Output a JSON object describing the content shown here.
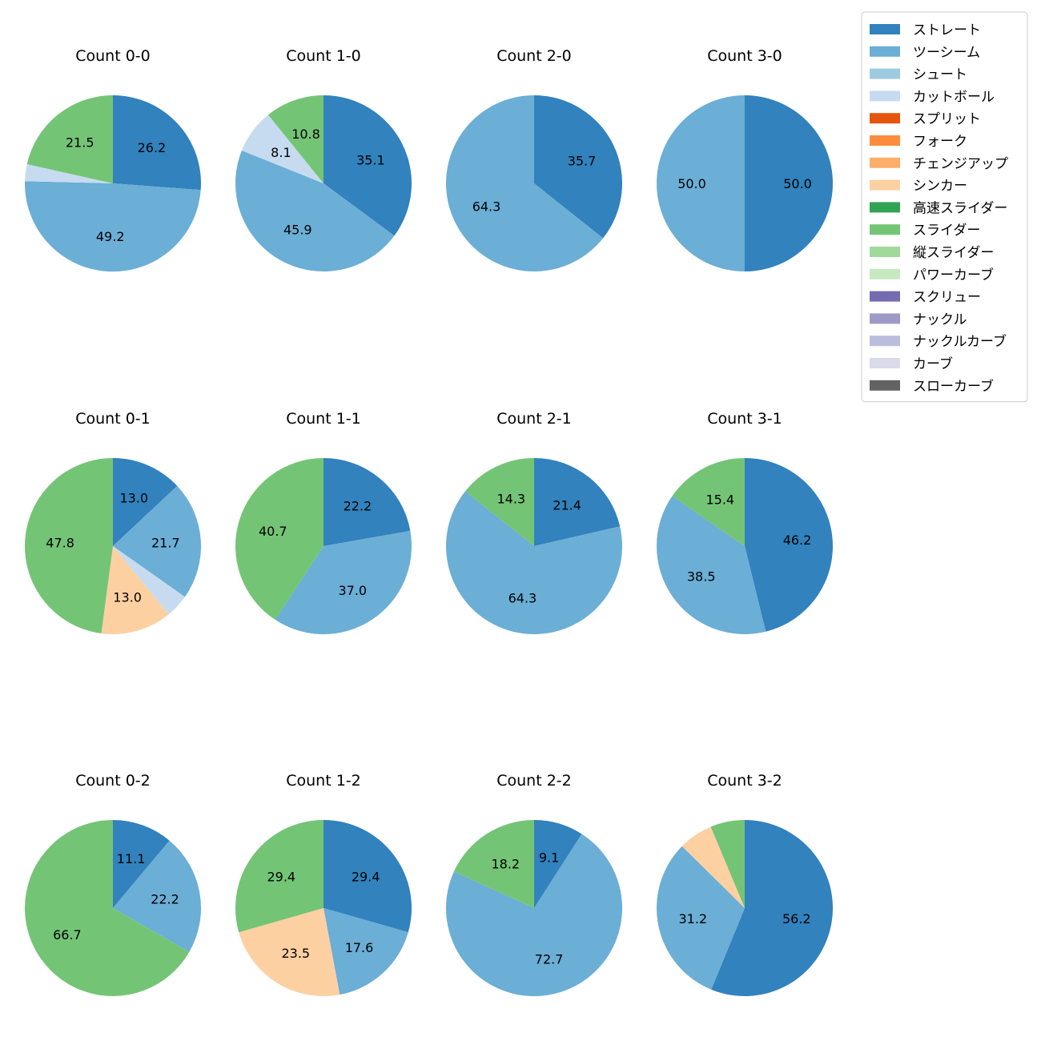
{
  "chart_data": {
    "type": "pie",
    "legend": {
      "position": "top-right",
      "entries": [
        {
          "name": "ストレート",
          "color": "#3182bd"
        },
        {
          "name": "ツーシーム",
          "color": "#6baed6"
        },
        {
          "name": "シュート",
          "color": "#9ecae1"
        },
        {
          "name": "カットボール",
          "color": "#c6dbef"
        },
        {
          "name": "スプリット",
          "color": "#e6550d"
        },
        {
          "name": "フォーク",
          "color": "#fd8d3c"
        },
        {
          "name": "チェンジアップ",
          "color": "#fdae6b"
        },
        {
          "name": "シンカー",
          "color": "#fdd0a2"
        },
        {
          "name": "高速スライダー",
          "color": "#31a354"
        },
        {
          "name": "スライダー",
          "color": "#74c476"
        },
        {
          "name": "縦スライダー",
          "color": "#a1d99b"
        },
        {
          "name": "パワーカーブ",
          "color": "#c7e9c0"
        },
        {
          "name": "スクリュー",
          "color": "#756bb1"
        },
        {
          "name": "ナックル",
          "color": "#9e9ac8"
        },
        {
          "name": "ナックルカーブ",
          "color": "#bcbddc"
        },
        {
          "name": "カーブ",
          "color": "#dadaeb"
        },
        {
          "name": "スローカーブ",
          "color": "#636363"
        }
      ]
    },
    "pies": [
      {
        "title": "Count 0-0",
        "slices": [
          {
            "pitch": "ストレート",
            "value": 26.2,
            "label": "26.2"
          },
          {
            "pitch": "ツーシーム",
            "value": 49.2,
            "label": "49.2"
          },
          {
            "pitch": "カットボール",
            "value": 3.1,
            "label": ""
          },
          {
            "pitch": "スライダー",
            "value": 21.5,
            "label": "21.5"
          }
        ]
      },
      {
        "title": "Count 1-0",
        "slices": [
          {
            "pitch": "ストレート",
            "value": 35.1,
            "label": "35.1"
          },
          {
            "pitch": "ツーシーム",
            "value": 45.9,
            "label": "45.9"
          },
          {
            "pitch": "カットボール",
            "value": 8.1,
            "label": "8.1"
          },
          {
            "pitch": "スライダー",
            "value": 10.8,
            "label": "10.8"
          }
        ]
      },
      {
        "title": "Count 2-0",
        "slices": [
          {
            "pitch": "ストレート",
            "value": 35.7,
            "label": "35.7"
          },
          {
            "pitch": "ツーシーム",
            "value": 64.3,
            "label": "64.3"
          }
        ]
      },
      {
        "title": "Count 3-0",
        "slices": [
          {
            "pitch": "ストレート",
            "value": 50.0,
            "label": "50.0"
          },
          {
            "pitch": "ツーシーム",
            "value": 50.0,
            "label": "50.0"
          }
        ]
      },
      {
        "title": "Count 0-1",
        "slices": [
          {
            "pitch": "ストレート",
            "value": 13.0,
            "label": "13.0"
          },
          {
            "pitch": "ツーシーム",
            "value": 21.7,
            "label": "21.7"
          },
          {
            "pitch": "カットボール",
            "value": 4.3,
            "label": ""
          },
          {
            "pitch": "シンカー",
            "value": 13.0,
            "label": "13.0"
          },
          {
            "pitch": "スライダー",
            "value": 47.8,
            "label": "47.8"
          }
        ]
      },
      {
        "title": "Count 1-1",
        "slices": [
          {
            "pitch": "ストレート",
            "value": 22.2,
            "label": "22.2"
          },
          {
            "pitch": "ツーシーム",
            "value": 37.0,
            "label": "37.0"
          },
          {
            "pitch": "スライダー",
            "value": 40.7,
            "label": "40.7"
          }
        ]
      },
      {
        "title": "Count 2-1",
        "slices": [
          {
            "pitch": "ストレート",
            "value": 21.4,
            "label": "21.4"
          },
          {
            "pitch": "ツーシーム",
            "value": 64.3,
            "label": "64.3"
          },
          {
            "pitch": "スライダー",
            "value": 14.3,
            "label": "14.3"
          }
        ]
      },
      {
        "title": "Count 3-1",
        "slices": [
          {
            "pitch": "ストレート",
            "value": 46.2,
            "label": "46.2"
          },
          {
            "pitch": "ツーシーム",
            "value": 38.5,
            "label": "38.5"
          },
          {
            "pitch": "スライダー",
            "value": 15.4,
            "label": "15.4"
          }
        ]
      },
      {
        "title": "Count 0-2",
        "slices": [
          {
            "pitch": "ストレート",
            "value": 11.1,
            "label": "11.1"
          },
          {
            "pitch": "ツーシーム",
            "value": 22.2,
            "label": "22.2"
          },
          {
            "pitch": "スライダー",
            "value": 66.7,
            "label": "66.7"
          }
        ]
      },
      {
        "title": "Count 1-2",
        "slices": [
          {
            "pitch": "ストレート",
            "value": 29.4,
            "label": "29.4"
          },
          {
            "pitch": "ツーシーム",
            "value": 17.6,
            "label": "17.6"
          },
          {
            "pitch": "シンカー",
            "value": 23.5,
            "label": "23.5"
          },
          {
            "pitch": "スライダー",
            "value": 29.4,
            "label": "29.4"
          }
        ]
      },
      {
        "title": "Count 2-2",
        "slices": [
          {
            "pitch": "ストレート",
            "value": 9.1,
            "label": "9.1"
          },
          {
            "pitch": "ツーシーム",
            "value": 72.7,
            "label": "72.7"
          },
          {
            "pitch": "スライダー",
            "value": 18.2,
            "label": "18.2"
          }
        ]
      },
      {
        "title": "Count 3-2",
        "slices": [
          {
            "pitch": "ストレート",
            "value": 56.2,
            "label": "56.2"
          },
          {
            "pitch": "ツーシーム",
            "value": 31.2,
            "label": "31.2"
          },
          {
            "pitch": "シンカー",
            "value": 6.3,
            "label": ""
          },
          {
            "pitch": "スライダー",
            "value": 6.3,
            "label": ""
          }
        ]
      }
    ]
  }
}
